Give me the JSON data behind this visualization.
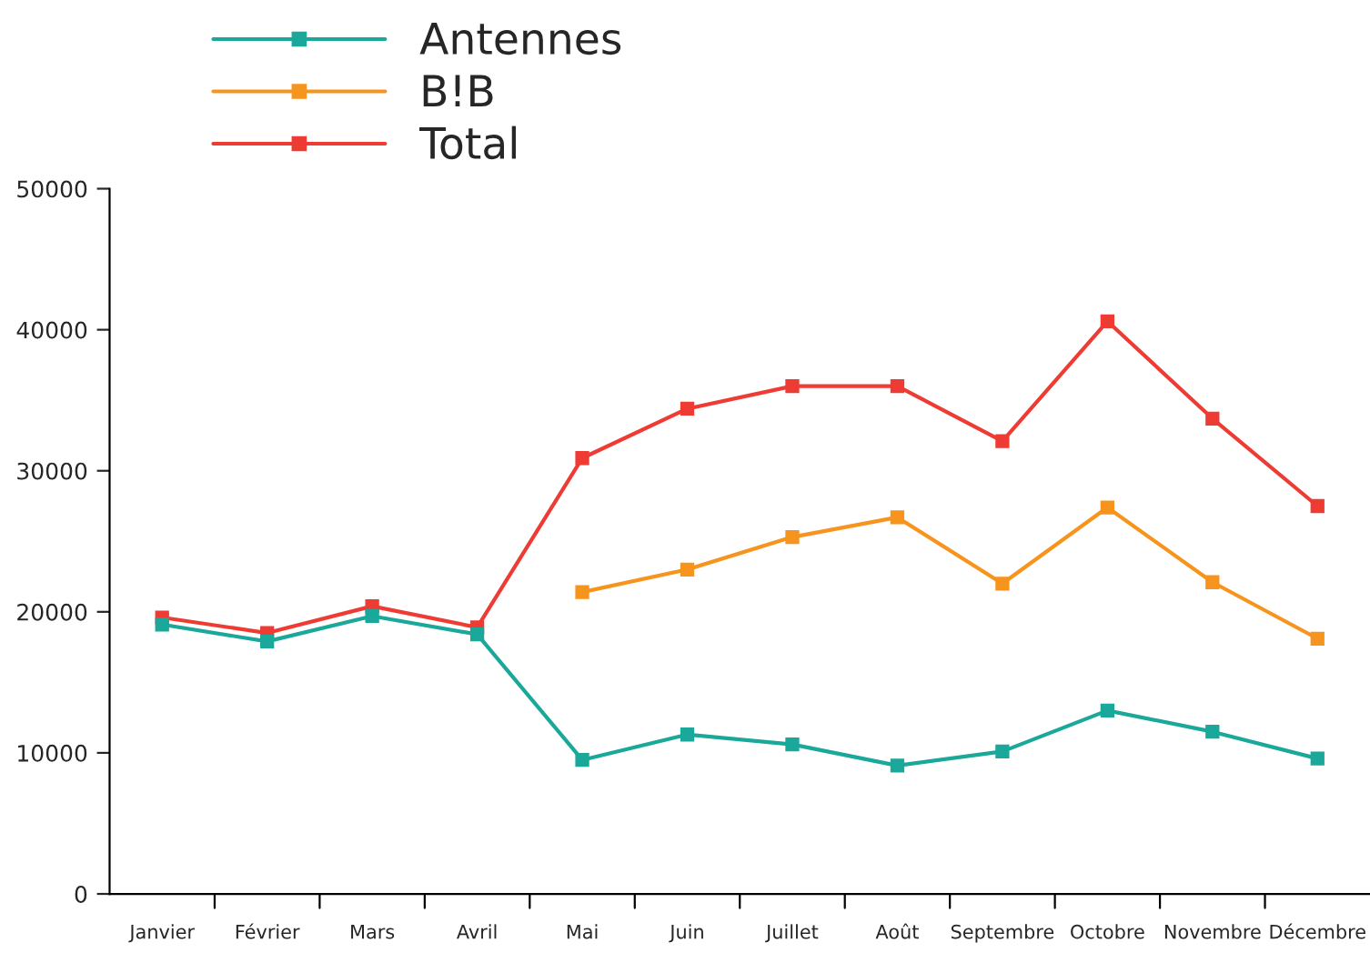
{
  "chart_data": {
    "type": "line",
    "categories": [
      "Janvier",
      "Février",
      "Mars",
      "Avril",
      "Mai",
      "Juin",
      "Juillet",
      "Août",
      "Septembre",
      "Octobre",
      "Novembre",
      "Décembre"
    ],
    "series": [
      {
        "name": "Antennes",
        "color": "#1aa89a",
        "values": [
          19100,
          17900,
          19700,
          18400,
          9500,
          11300,
          10600,
          9100,
          10100,
          13000,
          11500,
          9600
        ]
      },
      {
        "name": "B!B",
        "color": "#f7941d",
        "values": [
          null,
          null,
          null,
          null,
          21400,
          23000,
          25300,
          26700,
          22000,
          27400,
          22100,
          18100
        ]
      },
      {
        "name": "Total",
        "color": "#ee3b34",
        "values": [
          19600,
          18500,
          20400,
          18900,
          30900,
          34400,
          36000,
          36000,
          32100,
          40600,
          33700,
          27500
        ]
      }
    ],
    "ylim": [
      0,
      50000
    ],
    "yticks": [
      0,
      10000,
      20000,
      30000,
      40000,
      50000
    ],
    "marker": "square",
    "line_style": "solid",
    "grid": false,
    "legend": "top left"
  }
}
